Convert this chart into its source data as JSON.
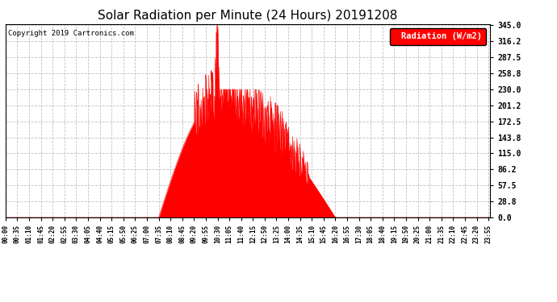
{
  "title": "Solar Radiation per Minute (24 Hours) 20191208",
  "copyright_text": "Copyright 2019 Cartronics.com",
  "legend_label": "Radiation (W/m2)",
  "y_ticks": [
    0.0,
    28.8,
    57.5,
    86.2,
    115.0,
    143.8,
    172.5,
    201.2,
    230.0,
    258.8,
    287.5,
    316.2,
    345.0
  ],
  "y_max": 345.0,
  "y_min": 0.0,
  "fill_color": "#ff0000",
  "line_color": "#ff0000",
  "background_color": "#ffffff",
  "grid_color": "#bbbbbb",
  "legend_bg": "#ff0000",
  "legend_text_color": "#ffffff",
  "title_fontsize": 11,
  "tick_fontsize": 6,
  "x_tick_interval_minutes": 35,
  "total_minutes": 1440,
  "sunrise_minute": 455,
  "peak_minute": 630,
  "peak_value": 345.0,
  "sunset_minute": 980,
  "figwidth": 6.9,
  "figheight": 3.75,
  "dpi": 100
}
